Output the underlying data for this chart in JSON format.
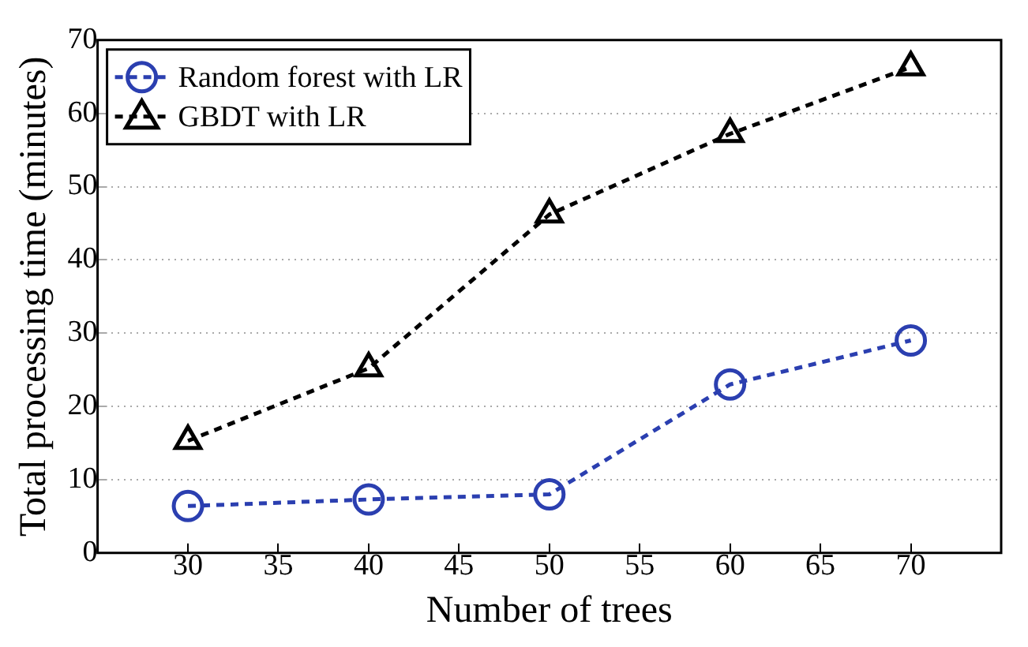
{
  "chart_data": {
    "type": "line",
    "xlabel": "Number of trees",
    "ylabel": "Total processing time (minutes)",
    "x": [
      30,
      40,
      50,
      60,
      70
    ],
    "series": [
      {
        "name": "Random forest with LR",
        "color": "#2b3fb0",
        "values": [
          6.4,
          7.3,
          8,
          23,
          29
        ],
        "marker": "circle"
      },
      {
        "name": "GBDT with LR",
        "color": "#000000",
        "values": [
          15.3,
          25.2,
          46.2,
          57.2,
          66.3
        ],
        "marker": "triangle"
      }
    ],
    "xlim": [
      25,
      75
    ],
    "xticks": [
      30,
      35,
      40,
      45,
      50,
      55,
      60,
      65,
      70
    ],
    "ylim": [
      0,
      70
    ],
    "yticks": [
      0,
      10,
      20,
      30,
      40,
      50,
      60,
      70
    ],
    "grid": "y",
    "legend": "top left",
    "line_style": "dashed"
  }
}
